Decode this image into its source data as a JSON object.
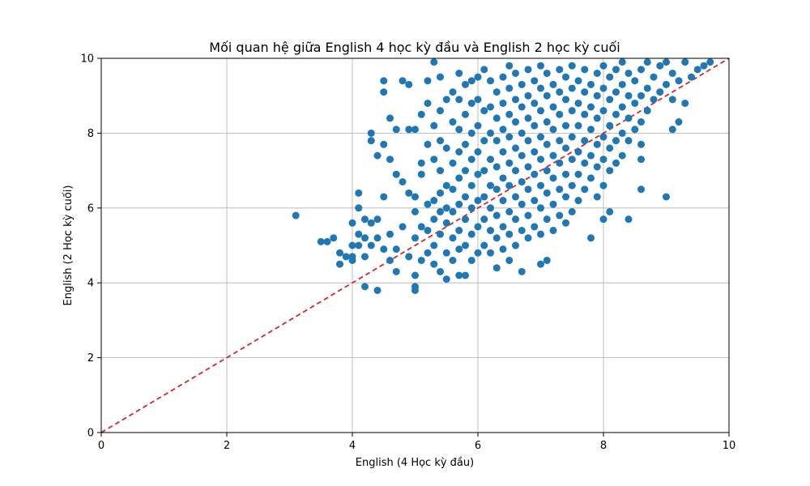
{
  "chart_data": {
    "type": "scatter",
    "title": "Mối quan hệ giữa English 4 học kỳ đầu và English 2 học kỳ cuối",
    "xlabel": "English (4 Học kỳ đầu)",
    "ylabel": "English (2 Học kỳ cuối)",
    "xlim": [
      0,
      10
    ],
    "ylim": [
      0,
      10
    ],
    "xticks": [
      0,
      2,
      4,
      6,
      8,
      10
    ],
    "yticks": [
      0,
      2,
      4,
      6,
      8,
      10
    ],
    "grid": true,
    "point_color": "#1f77b4",
    "reference_line": {
      "from": [
        0,
        0
      ],
      "to": [
        10,
        10
      ],
      "color": "#d62728",
      "style": "dashed"
    },
    "series": [
      {
        "points": [
          [
            3.1,
            5.8
          ],
          [
            3.5,
            5.1
          ],
          [
            3.6,
            5.1
          ],
          [
            3.7,
            5.2
          ],
          [
            3.8,
            4.8
          ],
          [
            3.8,
            4.5
          ],
          [
            3.9,
            4.7
          ],
          [
            4.0,
            4.6
          ],
          [
            4.0,
            4.7
          ],
          [
            4.0,
            5.0
          ],
          [
            4.0,
            5.6
          ],
          [
            4.1,
            5.0
          ],
          [
            4.1,
            5.3
          ],
          [
            4.1,
            6.0
          ],
          [
            4.1,
            6.4
          ],
          [
            4.2,
            3.9
          ],
          [
            4.2,
            4.7
          ],
          [
            4.2,
            5.2
          ],
          [
            4.2,
            5.7
          ],
          [
            4.3,
            5.0
          ],
          [
            4.3,
            5.6
          ],
          [
            4.3,
            7.8
          ],
          [
            4.3,
            8.0
          ],
          [
            4.4,
            3.8
          ],
          [
            4.4,
            5.2
          ],
          [
            4.4,
            5.7
          ],
          [
            4.4,
            7.4
          ],
          [
            4.5,
            4.9
          ],
          [
            4.5,
            6.3
          ],
          [
            4.5,
            7.7
          ],
          [
            4.5,
            9.1
          ],
          [
            4.5,
            9.4
          ],
          [
            4.6,
            4.6
          ],
          [
            4.6,
            5.3
          ],
          [
            4.6,
            7.3
          ],
          [
            4.6,
            8.4
          ],
          [
            4.7,
            4.3
          ],
          [
            4.7,
            4.9
          ],
          [
            4.7,
            6.9
          ],
          [
            4.7,
            8.1
          ],
          [
            4.8,
            5.5
          ],
          [
            4.8,
            6.7
          ],
          [
            4.8,
            9.4
          ],
          [
            4.9,
            4.7
          ],
          [
            4.9,
            6.4
          ],
          [
            4.9,
            8.1
          ],
          [
            4.9,
            9.3
          ],
          [
            5.0,
            3.8
          ],
          [
            5.0,
            3.9
          ],
          [
            5.0,
            4.2
          ],
          [
            5.0,
            5.2
          ],
          [
            5.0,
            5.9
          ],
          [
            5.0,
            6.3
          ],
          [
            5.0,
            8.1
          ],
          [
            5.1,
            4.6
          ],
          [
            5.1,
            5.5
          ],
          [
            5.1,
            6.9
          ],
          [
            5.1,
            7.2
          ],
          [
            5.1,
            8.5
          ],
          [
            5.2,
            4.8
          ],
          [
            5.2,
            5.4
          ],
          [
            5.2,
            6.1
          ],
          [
            5.2,
            7.7
          ],
          [
            5.2,
            8.8
          ],
          [
            5.2,
            9.4
          ],
          [
            5.3,
            4.5
          ],
          [
            5.3,
            5.0
          ],
          [
            5.3,
            5.7
          ],
          [
            5.3,
            6.2
          ],
          [
            5.3,
            7.3
          ],
          [
            5.3,
            8.2
          ],
          [
            5.3,
            9.9
          ],
          [
            5.4,
            4.3
          ],
          [
            5.4,
            5.3
          ],
          [
            5.4,
            5.9
          ],
          [
            5.4,
            6.4
          ],
          [
            5.4,
            7.0
          ],
          [
            5.4,
            7.8
          ],
          [
            5.4,
            8.6
          ],
          [
            5.4,
            9.5
          ],
          [
            5.5,
            4.1
          ],
          [
            5.5,
            4.8
          ],
          [
            5.5,
            5.6
          ],
          [
            5.5,
            6.0
          ],
          [
            5.5,
            6.6
          ],
          [
            5.5,
            7.6
          ],
          [
            5.5,
            8.9
          ],
          [
            5.6,
            4.6
          ],
          [
            5.6,
            5.2
          ],
          [
            5.6,
            5.9
          ],
          [
            5.6,
            6.5
          ],
          [
            5.6,
            7.2
          ],
          [
            5.6,
            8.3
          ],
          [
            5.6,
            9.1
          ],
          [
            5.7,
            4.2
          ],
          [
            5.7,
            4.9
          ],
          [
            5.7,
            5.4
          ],
          [
            5.7,
            6.1
          ],
          [
            5.7,
            6.8
          ],
          [
            5.7,
            7.5
          ],
          [
            5.7,
            8.1
          ],
          [
            5.7,
            8.9
          ],
          [
            5.7,
            9.6
          ],
          [
            5.8,
            4.2
          ],
          [
            5.8,
            5.0
          ],
          [
            5.8,
            5.7
          ],
          [
            5.8,
            6.3
          ],
          [
            5.8,
            7.0
          ],
          [
            5.8,
            7.7
          ],
          [
            5.8,
            8.5
          ],
          [
            5.8,
            9.3
          ],
          [
            5.9,
            4.6
          ],
          [
            5.9,
            5.3
          ],
          [
            5.9,
            6.0
          ],
          [
            5.9,
            6.6
          ],
          [
            5.9,
            7.3
          ],
          [
            5.9,
            8.0
          ],
          [
            5.9,
            8.8
          ],
          [
            5.9,
            9.4
          ],
          [
            6.0,
            4.8
          ],
          [
            6.0,
            5.5
          ],
          [
            6.0,
            6.2
          ],
          [
            6.0,
            6.9
          ],
          [
            6.0,
            7.5
          ],
          [
            6.0,
            8.2
          ],
          [
            6.0,
            8.9
          ],
          [
            6.0,
            9.5
          ],
          [
            6.1,
            5.0
          ],
          [
            6.1,
            5.7
          ],
          [
            6.1,
            6.3
          ],
          [
            6.1,
            7.0
          ],
          [
            6.1,
            7.8
          ],
          [
            6.1,
            8.6
          ],
          [
            6.1,
            9.7
          ],
          [
            6.2,
            4.8
          ],
          [
            6.2,
            5.4
          ],
          [
            6.2,
            6.0
          ],
          [
            6.2,
            6.6
          ],
          [
            6.2,
            7.3
          ],
          [
            6.2,
            8.0
          ],
          [
            6.2,
            8.7
          ],
          [
            6.2,
            9.4
          ],
          [
            6.3,
            4.4
          ],
          [
            6.3,
            5.2
          ],
          [
            6.3,
            5.8
          ],
          [
            6.3,
            6.5
          ],
          [
            6.3,
            7.1
          ],
          [
            6.3,
            7.8
          ],
          [
            6.3,
            8.4
          ],
          [
            6.3,
            9.1
          ],
          [
            6.4,
            4.9
          ],
          [
            6.4,
            5.5
          ],
          [
            6.4,
            6.2
          ],
          [
            6.4,
            6.8
          ],
          [
            6.4,
            7.5
          ],
          [
            6.4,
            8.1
          ],
          [
            6.4,
            8.8
          ],
          [
            6.4,
            9.5
          ],
          [
            6.5,
            4.6
          ],
          [
            6.5,
            5.3
          ],
          [
            6.5,
            5.9
          ],
          [
            6.5,
            6.6
          ],
          [
            6.5,
            7.2
          ],
          [
            6.5,
            7.9
          ],
          [
            6.5,
            8.5
          ],
          [
            6.5,
            9.2
          ],
          [
            6.5,
            9.8
          ],
          [
            6.6,
            5.0
          ],
          [
            6.6,
            5.7
          ],
          [
            6.6,
            6.3
          ],
          [
            6.6,
            7.0
          ],
          [
            6.6,
            7.6
          ],
          [
            6.6,
            8.3
          ],
          [
            6.6,
            8.9
          ],
          [
            6.6,
            9.6
          ],
          [
            6.7,
            4.3
          ],
          [
            6.7,
            5.4
          ],
          [
            6.7,
            6.1
          ],
          [
            6.7,
            6.7
          ],
          [
            6.7,
            7.4
          ],
          [
            6.7,
            8.0
          ],
          [
            6.7,
            8.7
          ],
          [
            6.7,
            9.3
          ],
          [
            6.8,
            5.2
          ],
          [
            6.8,
            5.8
          ],
          [
            6.8,
            6.5
          ],
          [
            6.8,
            7.1
          ],
          [
            6.8,
            7.8
          ],
          [
            6.8,
            8.4
          ],
          [
            6.8,
            9.0
          ],
          [
            6.8,
            9.7
          ],
          [
            6.9,
            5.5
          ],
          [
            6.9,
            6.2
          ],
          [
            6.9,
            6.9
          ],
          [
            6.9,
            7.5
          ],
          [
            6.9,
            8.2
          ],
          [
            6.9,
            8.8
          ],
          [
            6.9,
            9.4
          ],
          [
            7.0,
            4.5
          ],
          [
            7.0,
            5.3
          ],
          [
            7.0,
            6.0
          ],
          [
            7.0,
            6.6
          ],
          [
            7.0,
            7.3
          ],
          [
            7.0,
            7.9
          ],
          [
            7.0,
            8.6
          ],
          [
            7.0,
            9.2
          ],
          [
            7.0,
            9.8
          ],
          [
            7.1,
            4.6
          ],
          [
            7.1,
            5.7
          ],
          [
            7.1,
            6.4
          ],
          [
            7.1,
            7.0
          ],
          [
            7.1,
            7.7
          ],
          [
            7.1,
            8.3
          ],
          [
            7.1,
            9.0
          ],
          [
            7.1,
            9.6
          ],
          [
            7.2,
            5.4
          ],
          [
            7.2,
            6.1
          ],
          [
            7.2,
            6.8
          ],
          [
            7.2,
            7.4
          ],
          [
            7.2,
            8.1
          ],
          [
            7.2,
            8.7
          ],
          [
            7.2,
            9.3
          ],
          [
            7.3,
            5.8
          ],
          [
            7.3,
            6.5
          ],
          [
            7.3,
            7.2
          ],
          [
            7.3,
            7.8
          ],
          [
            7.3,
            8.5
          ],
          [
            7.3,
            9.1
          ],
          [
            7.3,
            9.7
          ],
          [
            7.4,
            5.6
          ],
          [
            7.4,
            6.3
          ],
          [
            7.4,
            6.9
          ],
          [
            7.4,
            7.6
          ],
          [
            7.4,
            8.2
          ],
          [
            7.4,
            8.9
          ],
          [
            7.4,
            9.5
          ],
          [
            7.5,
            5.9
          ],
          [
            7.5,
            6.6
          ],
          [
            7.5,
            7.3
          ],
          [
            7.5,
            7.9
          ],
          [
            7.5,
            8.6
          ],
          [
            7.5,
            9.2
          ],
          [
            7.5,
            9.8
          ],
          [
            7.6,
            6.2
          ],
          [
            7.6,
            6.9
          ],
          [
            7.6,
            7.5
          ],
          [
            7.6,
            8.2
          ],
          [
            7.6,
            8.8
          ],
          [
            7.6,
            9.4
          ],
          [
            7.7,
            6.5
          ],
          [
            7.7,
            7.2
          ],
          [
            7.7,
            7.8
          ],
          [
            7.7,
            8.5
          ],
          [
            7.7,
            9.1
          ],
          [
            7.7,
            9.7
          ],
          [
            7.8,
            5.2
          ],
          [
            7.8,
            6.8
          ],
          [
            7.8,
            7.4
          ],
          [
            7.8,
            8.1
          ],
          [
            7.8,
            8.7
          ],
          [
            7.8,
            9.3
          ],
          [
            7.9,
            6.3
          ],
          [
            7.9,
            7.1
          ],
          [
            7.9,
            7.7
          ],
          [
            7.9,
            8.4
          ],
          [
            7.9,
            9.0
          ],
          [
            7.9,
            9.6
          ],
          [
            8.0,
            5.7
          ],
          [
            8.0,
            6.6
          ],
          [
            8.0,
            7.3
          ],
          [
            8.0,
            7.9
          ],
          [
            8.0,
            8.6
          ],
          [
            8.0,
            9.2
          ],
          [
            8.0,
            9.8
          ],
          [
            8.1,
            5.9
          ],
          [
            8.1,
            7.0
          ],
          [
            8.1,
            7.6
          ],
          [
            8.1,
            8.2
          ],
          [
            8.1,
            8.9
          ],
          [
            8.1,
            9.5
          ],
          [
            8.2,
            7.2
          ],
          [
            8.2,
            7.8
          ],
          [
            8.2,
            8.5
          ],
          [
            8.2,
            9.1
          ],
          [
            8.2,
            9.7
          ],
          [
            8.3,
            7.4
          ],
          [
            8.3,
            8.0
          ],
          [
            8.3,
            8.7
          ],
          [
            8.3,
            9.3
          ],
          [
            8.3,
            9.9
          ],
          [
            8.4,
            5.7
          ],
          [
            8.4,
            7.8
          ],
          [
            8.4,
            8.4
          ],
          [
            8.4,
            9.0
          ],
          [
            8.4,
            9.6
          ],
          [
            8.5,
            8.1
          ],
          [
            8.5,
            8.8
          ],
          [
            8.5,
            9.4
          ],
          [
            8.6,
            6.5
          ],
          [
            8.6,
            7.3
          ],
          [
            8.6,
            7.7
          ],
          [
            8.6,
            8.3
          ],
          [
            8.6,
            9.0
          ],
          [
            8.6,
            9.7
          ],
          [
            8.7,
            8.6
          ],
          [
            8.7,
            9.2
          ],
          [
            8.7,
            9.9
          ],
          [
            8.8,
            8.9
          ],
          [
            8.8,
            9.5
          ],
          [
            8.9,
            9.1
          ],
          [
            8.9,
            9.8
          ],
          [
            9.0,
            6.3
          ],
          [
            9.0,
            9.3
          ],
          [
            9.0,
            9.9
          ],
          [
            9.1,
            8.1
          ],
          [
            9.1,
            8.9
          ],
          [
            9.1,
            9.6
          ],
          [
            9.2,
            8.3
          ],
          [
            9.2,
            9.4
          ],
          [
            9.3,
            8.8
          ],
          [
            9.3,
            9.9
          ],
          [
            9.4,
            9.5
          ],
          [
            9.5,
            9.7
          ],
          [
            9.6,
            9.8
          ],
          [
            9.7,
            9.9
          ]
        ]
      }
    ]
  }
}
